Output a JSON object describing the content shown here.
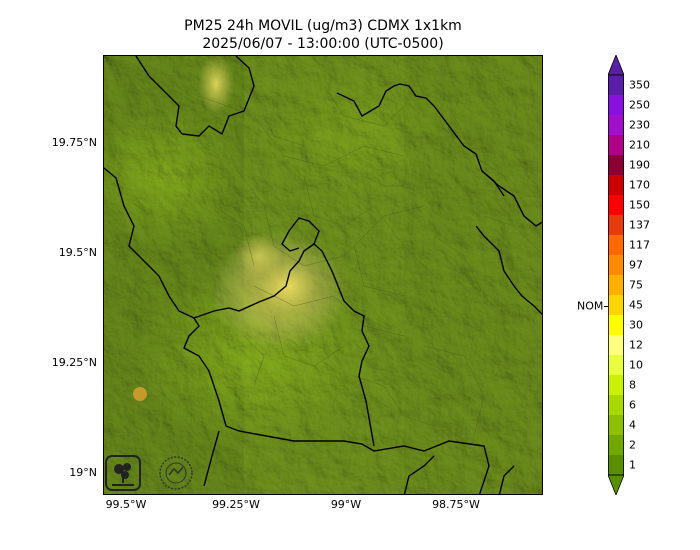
{
  "title": {
    "line1": "PM25 24h MOVIL (ug/m3) CDMX 1x1km",
    "line2": "2025/06/07 - 13:00:00 (UTC-0500)"
  },
  "axes": {
    "lat_ticks": [
      "19.75°N",
      "19.5°N",
      "19.25°N",
      "19°N"
    ],
    "lon_ticks": [
      "99.5°W",
      "99.25°W",
      "99°W",
      "98.75°W"
    ]
  },
  "colorbar": {
    "levels": [
      "350",
      "250",
      "230",
      "210",
      "190",
      "170",
      "150",
      "137",
      "117",
      "97",
      "75",
      "45",
      "30",
      "12",
      "10",
      "8",
      "6",
      "4",
      "2",
      "1"
    ],
    "colors": [
      "#5a1fa8",
      "#8a10e0",
      "#a010c8",
      "#b00088",
      "#8b0030",
      "#cc0000",
      "#ff0000",
      "#e83c10",
      "#ff6a00",
      "#ff8c00",
      "#ffb000",
      "#ffd400",
      "#ffff00",
      "#ffff80",
      "#e8ff40",
      "#c8f000",
      "#a8d800",
      "#8cc000",
      "#70a800",
      "#5a9000"
    ],
    "nom_label": "NOM"
  },
  "logos": {
    "left": "sedema-logo",
    "right": "gobierno-cdmx-logo"
  }
}
